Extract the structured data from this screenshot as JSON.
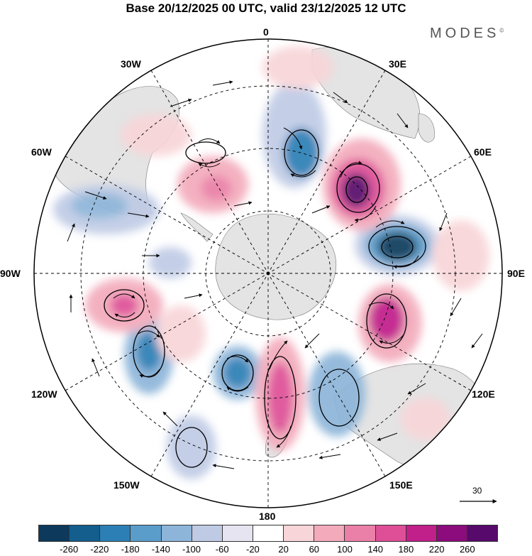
{
  "title": "Base 20/12/2025 00 UTC, valid 23/12/2025 12 UTC",
  "brand": "MODES",
  "brand_mark": "©",
  "longitude_labels": {
    "n": "0",
    "ne": "30E",
    "ene": "60E",
    "e": "90E",
    "ese": "120E",
    "se": "150E",
    "s": "180",
    "sw": "150W",
    "wsw": "120W",
    "w": "90W",
    "wnw": "60W",
    "nw": "30W"
  },
  "reference_vector": {
    "value": "30"
  },
  "colorbar": {
    "colors": [
      "#0d3a5c",
      "#135e8c",
      "#2b7fb5",
      "#5a9dcb",
      "#8db5d9",
      "#bfcbe5",
      "#e6e4f0",
      "#ffffff",
      "#f8d5d8",
      "#f3abbb",
      "#ea7fa7",
      "#de4f97",
      "#c11f8a",
      "#8c0b7d",
      "#570a6b"
    ],
    "ticks": [
      "-260",
      "-220",
      "-180",
      "-140",
      "-100",
      "-60",
      "-20",
      "20",
      "60",
      "100",
      "140",
      "180",
      "220",
      "260"
    ]
  }
}
